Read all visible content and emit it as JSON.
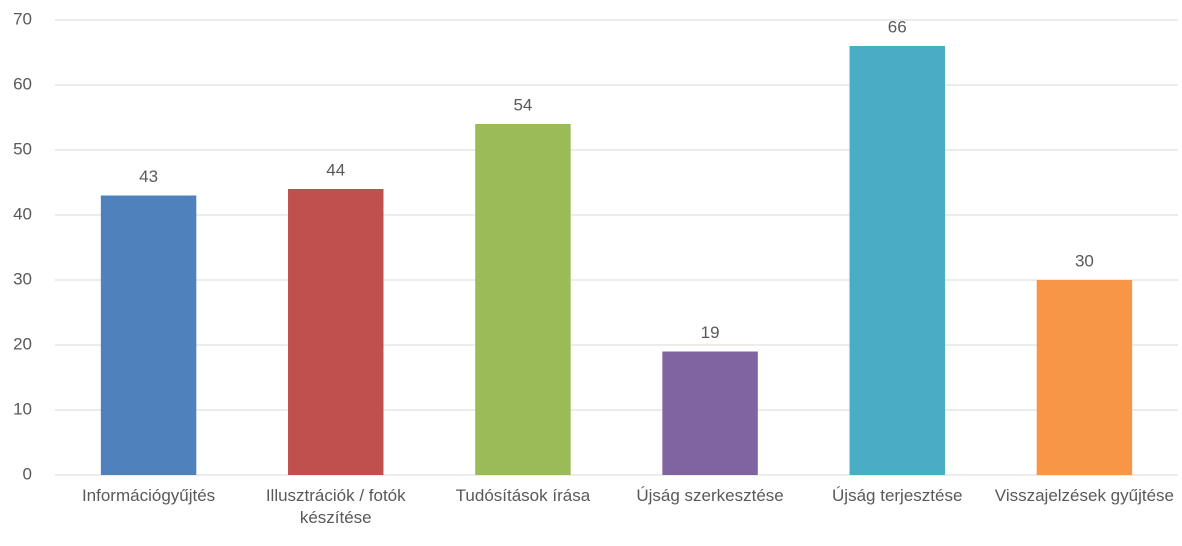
{
  "chart_data": {
    "type": "bar",
    "categories": [
      "Információgyűjtés",
      "Illusztrációk / fotók készítése",
      "Tudósítások írása",
      "Újság szerkesztése",
      "Újság terjesztése",
      "Visszajelzések gyűjtése"
    ],
    "values": [
      43,
      44,
      54,
      19,
      66,
      30
    ],
    "colors": [
      "#4f81bd",
      "#c0504d",
      "#9bbb59",
      "#8064a2",
      "#4bacc6",
      "#f79646"
    ],
    "ylim": [
      0,
      70
    ],
    "yticks": [
      0,
      10,
      20,
      30,
      40,
      50,
      60,
      70
    ],
    "grid": true
  }
}
